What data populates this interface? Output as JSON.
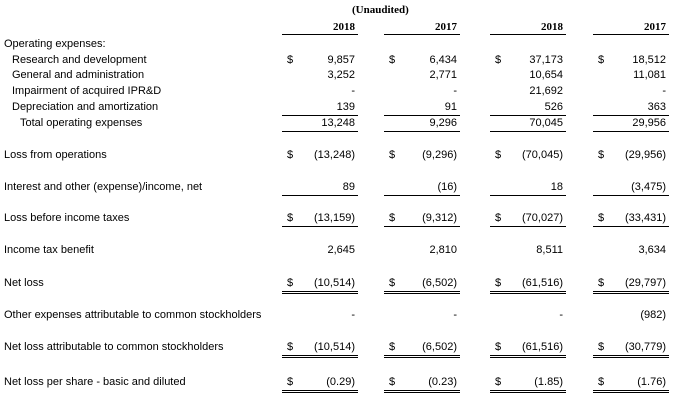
{
  "header": {
    "unaudited": "(Unaudited)",
    "years": [
      "2018",
      "2017",
      "2018",
      "2017"
    ]
  },
  "rows": [
    {
      "label": "Operating expenses:",
      "values": [
        "",
        "",
        "",
        ""
      ],
      "dollar": [
        false,
        false,
        false,
        false
      ]
    },
    {
      "label": "Research and development",
      "values": [
        "9,857",
        "6,434",
        "37,173",
        "18,512"
      ],
      "dollar": [
        true,
        true,
        true,
        true
      ]
    },
    {
      "label": "General and administration",
      "values": [
        "3,252",
        "2,771",
        "10,654",
        "11,081"
      ],
      "dollar": [
        false,
        false,
        false,
        false
      ]
    },
    {
      "label": "Impairment of acquired IPR&D",
      "values": [
        "-",
        "-",
        "21,692",
        "-"
      ],
      "dollar": [
        false,
        false,
        false,
        false
      ]
    },
    {
      "label": "Depreciation and amortization",
      "values": [
        "139",
        "91",
        "526",
        "363"
      ],
      "dollar": [
        false,
        false,
        false,
        false
      ]
    },
    {
      "label": "Total operating expenses",
      "values": [
        "13,248",
        "9,296",
        "70,045",
        "29,956"
      ],
      "dollar": [
        false,
        false,
        false,
        false
      ]
    },
    {
      "label": "Loss from operations",
      "values": [
        "(13,248)",
        "(9,296)",
        "(70,045)",
        "(29,956)"
      ],
      "dollar": [
        true,
        true,
        true,
        true
      ]
    },
    {
      "label": "Interest and other (expense)/income, net",
      "values": [
        "89",
        "(16)",
        "18",
        "(3,475)"
      ],
      "dollar": [
        false,
        false,
        false,
        false
      ]
    },
    {
      "label": "Loss before income taxes",
      "values": [
        "(13,159)",
        "(9,312)",
        "(70,027)",
        "(33,431)"
      ],
      "dollar": [
        true,
        true,
        true,
        true
      ]
    },
    {
      "label": "Income tax benefit",
      "values": [
        "2,645",
        "2,810",
        "8,511",
        "3,634"
      ],
      "dollar": [
        false,
        false,
        false,
        false
      ]
    },
    {
      "label": "Net loss",
      "values": [
        "(10,514)",
        "(6,502)",
        "(61,516)",
        "(29,797)"
      ],
      "dollar": [
        true,
        true,
        true,
        true
      ]
    },
    {
      "label": "Other expenses attributable to common stockholders",
      "values": [
        "-",
        "-",
        "-",
        "(982)"
      ],
      "dollar": [
        false,
        false,
        false,
        false
      ]
    },
    {
      "label": "Net loss attributable to common stockholders",
      "values": [
        "(10,514)",
        "(6,502)",
        "(61,516)",
        "(30,779)"
      ],
      "dollar": [
        true,
        true,
        true,
        true
      ]
    },
    {
      "label": "Net loss per share - basic and diluted",
      "values": [
        "(0.29)",
        "(0.23)",
        "(1.85)",
        "(1.76)"
      ],
      "dollar": [
        true,
        true,
        true,
        true
      ]
    }
  ],
  "currency_symbol": "$"
}
